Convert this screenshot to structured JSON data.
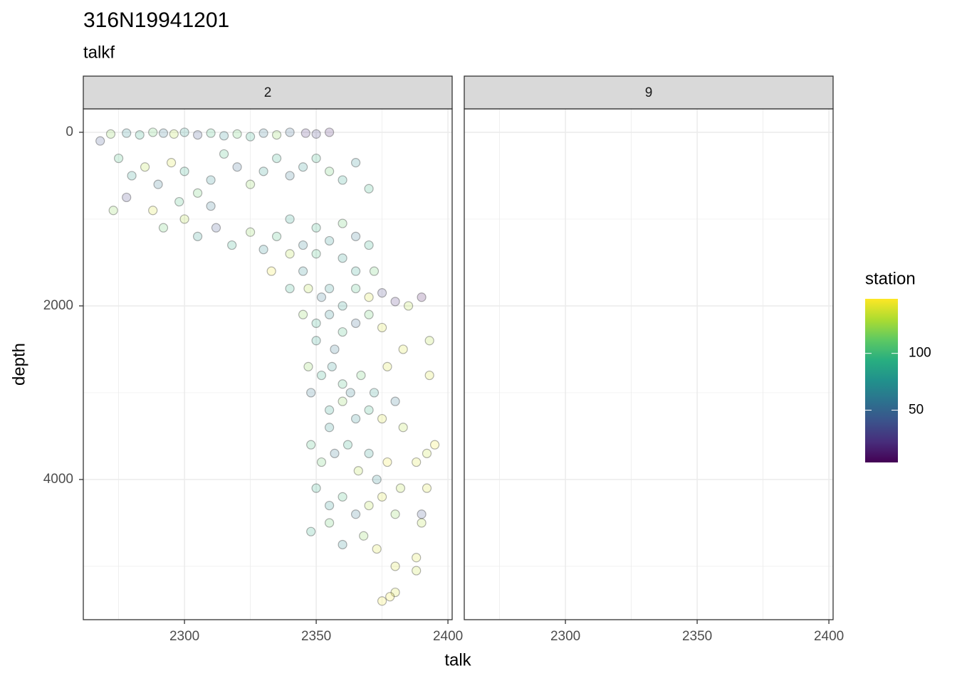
{
  "chart_data": {
    "type": "scatter",
    "title": "316N19941201",
    "subtitle": "talkf",
    "x_label": "talk",
    "y_label": "depth",
    "y_reversed": true,
    "grid": true,
    "xlim": [
      2261.6,
      2401.6
    ],
    "xticks": [
      2300,
      2350,
      2400
    ],
    "minor_xticks": [
      2275,
      2325,
      2375
    ],
    "ylim": [
      -270,
      5615
    ],
    "yticks": [
      0,
      2000,
      4000
    ],
    "minor_yticks": [
      1000,
      3000,
      5000
    ],
    "point_fill_opacity": 0.2,
    "facets": [
      {
        "label": "2",
        "x": [
          2268,
          2272,
          2278,
          2283,
          2288,
          2292,
          2296,
          2300,
          2305,
          2310,
          2315,
          2320,
          2325,
          2330,
          2335,
          2340,
          2346,
          2350,
          2355,
          2275,
          2280,
          2285,
          2290,
          2295,
          2300,
          2305,
          2310,
          2315,
          2320,
          2325,
          2330,
          2335,
          2340,
          2345,
          2350,
          2355,
          2360,
          2365,
          2370,
          2273,
          2278,
          2288,
          2298,
          2310,
          2292,
          2300,
          2305,
          2312,
          2318,
          2325,
          2330,
          2335,
          2340,
          2345,
          2350,
          2355,
          2360,
          2365,
          2370,
          2360,
          2350,
          2340,
          2333,
          2345,
          2365,
          2372,
          2340,
          2347,
          2352,
          2355,
          2360,
          2365,
          2370,
          2375,
          2380,
          2385,
          2390,
          2345,
          2350,
          2355,
          2360,
          2365,
          2370,
          2375,
          2383,
          2393,
          2350,
          2357,
          2347,
          2352,
          2356,
          2360,
          2363,
          2367,
          2372,
          2377,
          2393,
          2348,
          2355,
          2360,
          2365,
          2370,
          2375,
          2380,
          2383,
          2355,
          2348,
          2352,
          2357,
          2362,
          2366,
          2370,
          2373,
          2377,
          2382,
          2388,
          2395,
          2392,
          2392,
          2350,
          2355,
          2360,
          2365,
          2370,
          2375,
          2380,
          2390,
          2390,
          2348,
          2355,
          2360,
          2368,
          2373,
          2380,
          2388,
          2388,
          2380,
          2378,
          2375
        ],
        "y": [
          100,
          20,
          10,
          30,
          0,
          10,
          20,
          0,
          30,
          10,
          40,
          20,
          50,
          10,
          30,
          0,
          10,
          20,
          0,
          300,
          500,
          400,
          600,
          350,
          450,
          700,
          550,
          250,
          400,
          600,
          450,
          300,
          500,
          400,
          300,
          450,
          550,
          350,
          650,
          900,
          750,
          900,
          800,
          850,
          1100,
          1000,
          1200,
          1100,
          1300,
          1150,
          1350,
          1200,
          1000,
          1300,
          1100,
          1250,
          1050,
          1200,
          1300,
          1450,
          1400,
          1400,
          1600,
          1600,
          1600,
          1600,
          1800,
          1800,
          1900,
          1800,
          2000,
          1800,
          1900,
          1850,
          1950,
          2000,
          1900,
          2100,
          2200,
          2100,
          2300,
          2200,
          2100,
          2250,
          2500,
          2400,
          2400,
          2500,
          2700,
          2800,
          2700,
          2900,
          3000,
          2800,
          3000,
          2700,
          2800,
          3000,
          3200,
          3100,
          3300,
          3200,
          3300,
          3100,
          3400,
          3400,
          3600,
          3800,
          3700,
          3600,
          3900,
          3700,
          4000,
          3800,
          4100,
          3800,
          3600,
          3700,
          4100,
          4100,
          4300,
          4200,
          4400,
          4300,
          4200,
          4400,
          4400,
          4500,
          4600,
          4500,
          4750,
          4650,
          4800,
          5000,
          4900,
          5050,
          5300,
          5350,
          5400
        ],
        "station": [
          40,
          120,
          70,
          90,
          110,
          60,
          130,
          80,
          40,
          100,
          70,
          110,
          90,
          60,
          120,
          50,
          20,
          30,
          15,
          100,
          80,
          130,
          60,
          140,
          90,
          110,
          70,
          100,
          50,
          120,
          80,
          90,
          60,
          75,
          95,
          110,
          85,
          70,
          95,
          120,
          30,
          140,
          100,
          60,
          110,
          130,
          80,
          40,
          90,
          120,
          70,
          100,
          85,
          65,
          95,
          75,
          110,
          60,
          90,
          80,
          100,
          130,
          145,
          70,
          85,
          110,
          90,
          130,
          60,
          75,
          80,
          100,
          140,
          30,
          20,
          130,
          10,
          120,
          90,
          70,
          100,
          50,
          110,
          140,
          140,
          130,
          85,
          60,
          120,
          90,
          75,
          100,
          65,
          110,
          80,
          140,
          140,
          60,
          85,
          120,
          70,
          95,
          140,
          60,
          130,
          75,
          100,
          110,
          60,
          90,
          130,
          80,
          70,
          145,
          130,
          140,
          145,
          135,
          140,
          90,
          75,
          100,
          60,
          130,
          140,
          120,
          40,
          130,
          90,
          110,
          70,
          120,
          140,
          140,
          140,
          135,
          140,
          145,
          145
        ]
      },
      {
        "label": "9",
        "x": [],
        "y": [],
        "station": []
      }
    ],
    "colorbar": {
      "title": "station",
      "lim": [
        4,
        148
      ],
      "ticks": [
        50,
        100
      ],
      "colors": [
        "#440154",
        "#472d7b",
        "#3b528b",
        "#2c728e",
        "#21918c",
        "#28ae80",
        "#5ec962",
        "#addc30",
        "#fde725"
      ]
    }
  }
}
